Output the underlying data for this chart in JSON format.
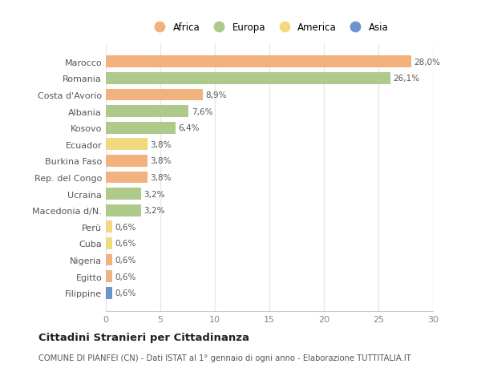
{
  "countries": [
    "Marocco",
    "Romania",
    "Costa d'Avorio",
    "Albania",
    "Kosovo",
    "Ecuador",
    "Burkina Faso",
    "Rep. del Congo",
    "Ucraina",
    "Macedonia d/N.",
    "Perù",
    "Cuba",
    "Nigeria",
    "Egitto",
    "Filippine"
  ],
  "values": [
    28.0,
    26.1,
    8.9,
    7.6,
    6.4,
    3.8,
    3.8,
    3.8,
    3.2,
    3.2,
    0.6,
    0.6,
    0.6,
    0.6,
    0.6
  ],
  "labels": [
    "28,0%",
    "26,1%",
    "8,9%",
    "7,6%",
    "6,4%",
    "3,8%",
    "3,8%",
    "3,8%",
    "3,2%",
    "3,2%",
    "0,6%",
    "0,6%",
    "0,6%",
    "0,6%",
    "0,6%"
  ],
  "continents": [
    "Africa",
    "Europa",
    "Africa",
    "Europa",
    "Europa",
    "America",
    "Africa",
    "Africa",
    "Europa",
    "Europa",
    "America",
    "America",
    "Africa",
    "Africa",
    "Asia"
  ],
  "continent_colors": {
    "Africa": "#F2B27E",
    "Europa": "#AECA8A",
    "America": "#F2D97E",
    "Asia": "#6B93CC"
  },
  "legend_items": [
    "Africa",
    "Europa",
    "America",
    "Asia"
  ],
  "legend_colors": [
    "#F2B27E",
    "#AECA8A",
    "#F2D97E",
    "#6B93CC"
  ],
  "bg_color": "#ffffff",
  "grid_color": "#e8e8e8",
  "title": "Cittadini Stranieri per Cittadinanza",
  "subtitle": "COMUNE DI PIANFEI (CN) - Dati ISTAT al 1° gennaio di ogni anno - Elaborazione TUTTITALIA.IT",
  "xlim": [
    0,
    30
  ],
  "xticks": [
    0,
    5,
    10,
    15,
    20,
    25,
    30
  ]
}
